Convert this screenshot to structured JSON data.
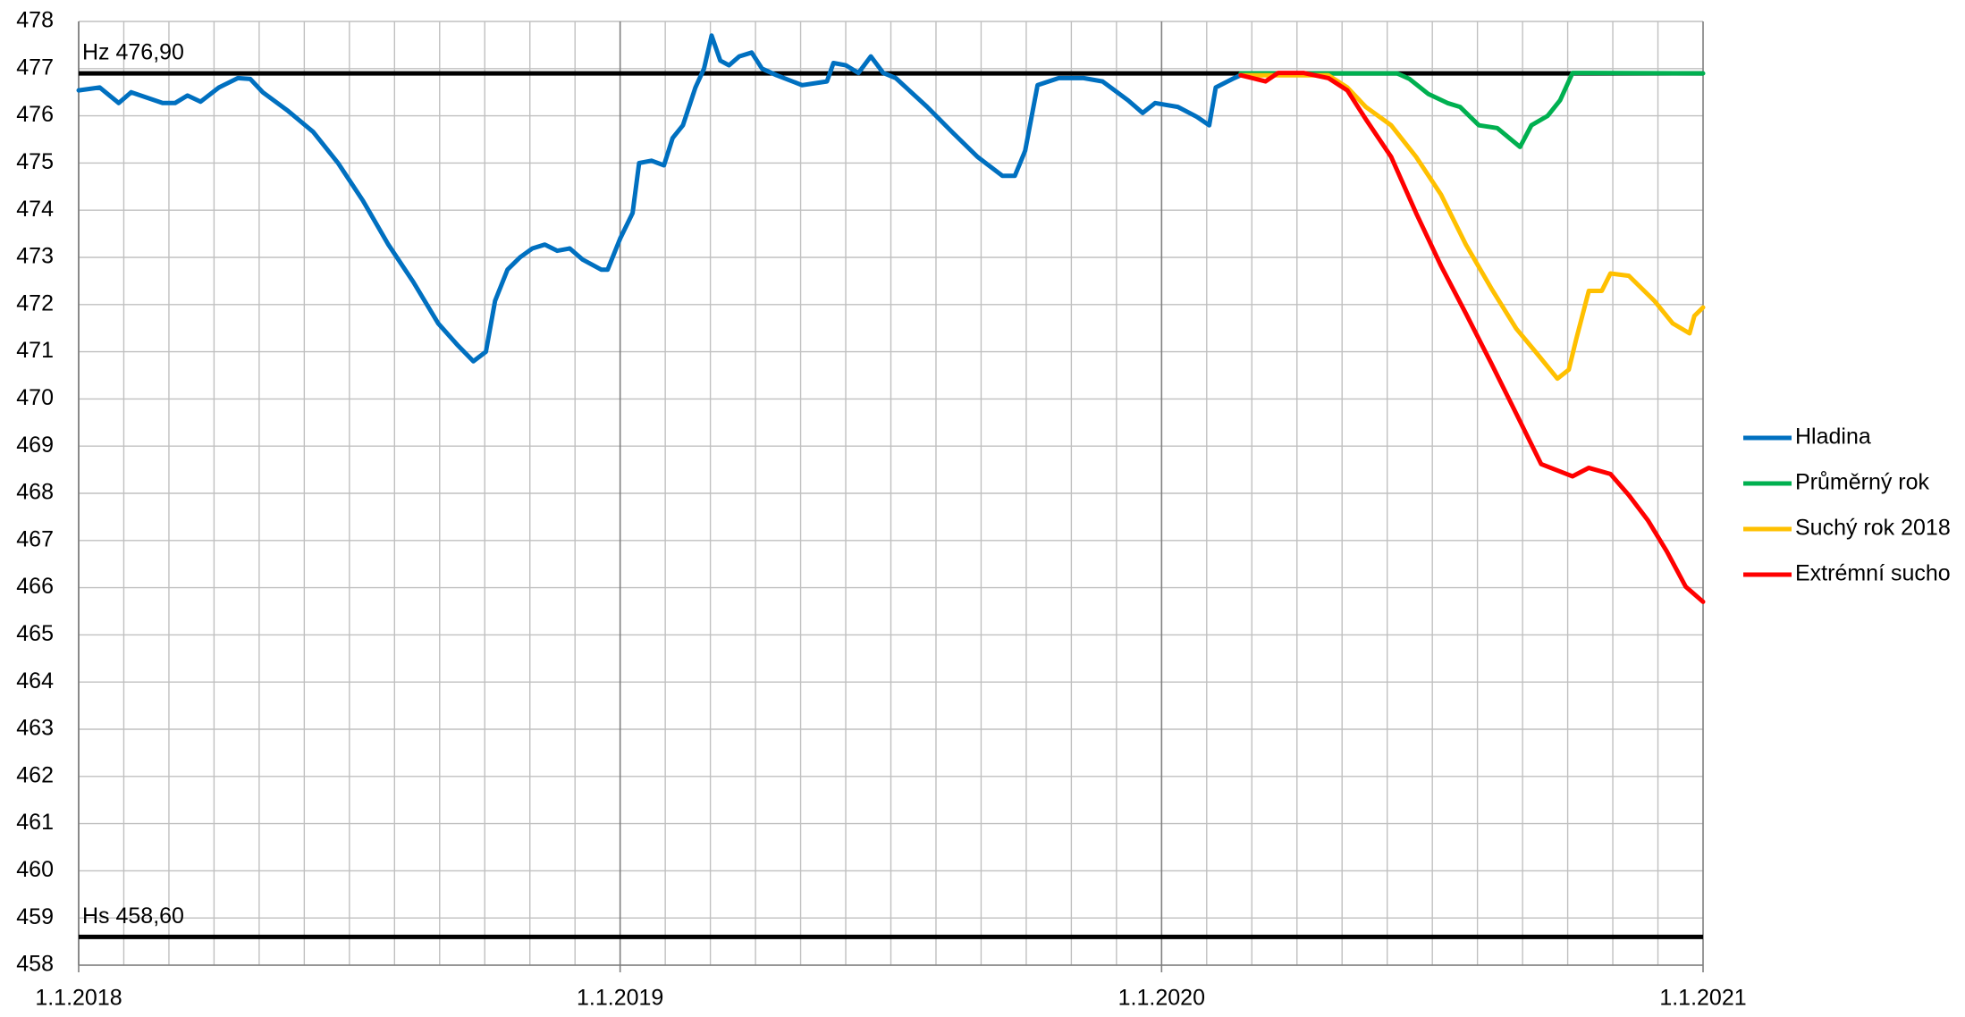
{
  "chart_data": {
    "type": "line",
    "xlim": [
      2018,
      2021
    ],
    "xticks": [
      {
        "value": 2018,
        "label": "1.1.2018"
      },
      {
        "value": 2019,
        "label": "1.1.2019"
      },
      {
        "value": 2020,
        "label": "1.1.2020"
      },
      {
        "value": 2021,
        "label": "1.1.2021"
      }
    ],
    "ylim": [
      458,
      478
    ],
    "yticks": [
      458,
      459,
      460,
      461,
      462,
      463,
      464,
      465,
      466,
      467,
      468,
      469,
      470,
      471,
      472,
      473,
      474,
      475,
      476,
      477,
      478
    ],
    "grid": true,
    "legend": "right",
    "reference_lines": [
      {
        "label": "Hz 476,90",
        "value": 476.9
      },
      {
        "label": "Hs 458,60",
        "value": 458.6
      }
    ],
    "series": [
      {
        "name": "Hladina",
        "color": "#0070c0",
        "x": [
          2018,
          2018.039,
          2018.074,
          2018.097,
          2018.155,
          2018.178,
          2018.201,
          2018.225,
          2018.259,
          2018.294,
          2018.317,
          2018.34,
          2018.387,
          2018.433,
          2018.479,
          2018.525,
          2018.572,
          2018.618,
          2018.664,
          2018.699,
          2018.729,
          2018.752,
          2018.769,
          2018.792,
          2018.815,
          2018.838,
          2018.861,
          2018.884,
          2018.907,
          2018.931,
          2018.965,
          2018.977,
          2019,
          2019.023,
          2019.035,
          2019.058,
          2019.081,
          2019.097,
          2019.116,
          2019.139,
          2019.155,
          2019.169,
          2019.185,
          2019.201,
          2019.22,
          2019.243,
          2019.262,
          2019.289,
          2019.336,
          2019.382,
          2019.394,
          2019.417,
          2019.44,
          2019.463,
          2019.486,
          2019.509,
          2019.567,
          2019.613,
          2019.66,
          2019.706,
          2019.729,
          2019.748,
          2019.771,
          2019.81,
          2019.856,
          2019.891,
          2019.938,
          2019.965,
          2019.988,
          2020.03,
          2020.065,
          2020.088,
          2020.1,
          2020.134,
          2020.146
        ],
        "values": [
          476.54,
          476.6,
          476.27,
          476.5,
          476.27,
          476.27,
          476.43,
          476.3,
          476.6,
          476.8,
          476.78,
          476.5,
          476.1,
          475.66,
          475.0,
          474.2,
          473.27,
          472.48,
          471.6,
          471.15,
          470.8,
          471.0,
          472.08,
          472.74,
          473.0,
          473.19,
          473.27,
          473.14,
          473.19,
          472.95,
          472.74,
          472.74,
          473.4,
          473.94,
          475.0,
          475.05,
          474.95,
          475.53,
          475.8,
          476.6,
          477.0,
          477.7,
          477.17,
          477.07,
          477.26,
          477.34,
          477.0,
          476.86,
          476.65,
          476.73,
          477.12,
          477.07,
          476.91,
          477.26,
          476.91,
          476.8,
          476.19,
          475.66,
          475.13,
          474.73,
          474.73,
          475.26,
          476.65,
          476.8,
          476.8,
          476.73,
          476.33,
          476.06,
          476.27,
          476.19,
          475.98,
          475.8,
          476.6,
          476.8,
          476.86
        ]
      },
      {
        "name": "Průměrný rok",
        "color": "#00b050",
        "x": [
          2020.146,
          2020.435,
          2020.458,
          2020.493,
          2020.528,
          2020.551,
          2020.586,
          2020.62,
          2020.662,
          2020.683,
          2020.713,
          2020.736,
          2020.759,
          2021
        ],
        "values": [
          476.9,
          476.9,
          476.78,
          476.46,
          476.27,
          476.19,
          475.8,
          475.74,
          475.34,
          475.8,
          476.0,
          476.33,
          476.91,
          476.9
        ]
      },
      {
        "name": "Suchý rok 2018",
        "color": "#ffc000",
        "x": [
          2020.146,
          2020.308,
          2020.343,
          2020.377,
          2020.424,
          2020.47,
          2020.516,
          2020.562,
          2020.609,
          2020.655,
          2020.69,
          2020.731,
          2020.752,
          2020.766,
          2020.789,
          2020.813,
          2020.829,
          2020.863,
          2020.91,
          2020.944,
          2020.975,
          2020.984,
          2021
        ],
        "values": [
          476.86,
          476.86,
          476.6,
          476.19,
          475.8,
          475.13,
          474.33,
          473.27,
          472.34,
          471.49,
          471.01,
          470.43,
          470.62,
          471.28,
          472.29,
          472.29,
          472.66,
          472.61,
          472.08,
          471.6,
          471.39,
          471.76,
          471.94
        ]
      },
      {
        "name": "Extrémní sucho",
        "color": "#ff0000",
        "x": [
          2020.146,
          2020.192,
          2020.215,
          2020.262,
          2020.308,
          2020.343,
          2020.377,
          2020.424,
          2020.47,
          2020.516,
          2020.562,
          2020.609,
          2020.655,
          2020.701,
          2020.748,
          2020.759,
          2020.789,
          2020.829,
          2020.863,
          2020.898,
          2020.933,
          2020.968,
          2021
        ],
        "values": [
          476.86,
          476.73,
          476.91,
          476.91,
          476.8,
          476.54,
          475.93,
          475.13,
          473.94,
          472.82,
          471.81,
          470.75,
          469.69,
          468.62,
          468.41,
          468.36,
          468.54,
          468.41,
          467.96,
          467.43,
          466.77,
          466.02,
          465.7
        ]
      }
    ]
  }
}
